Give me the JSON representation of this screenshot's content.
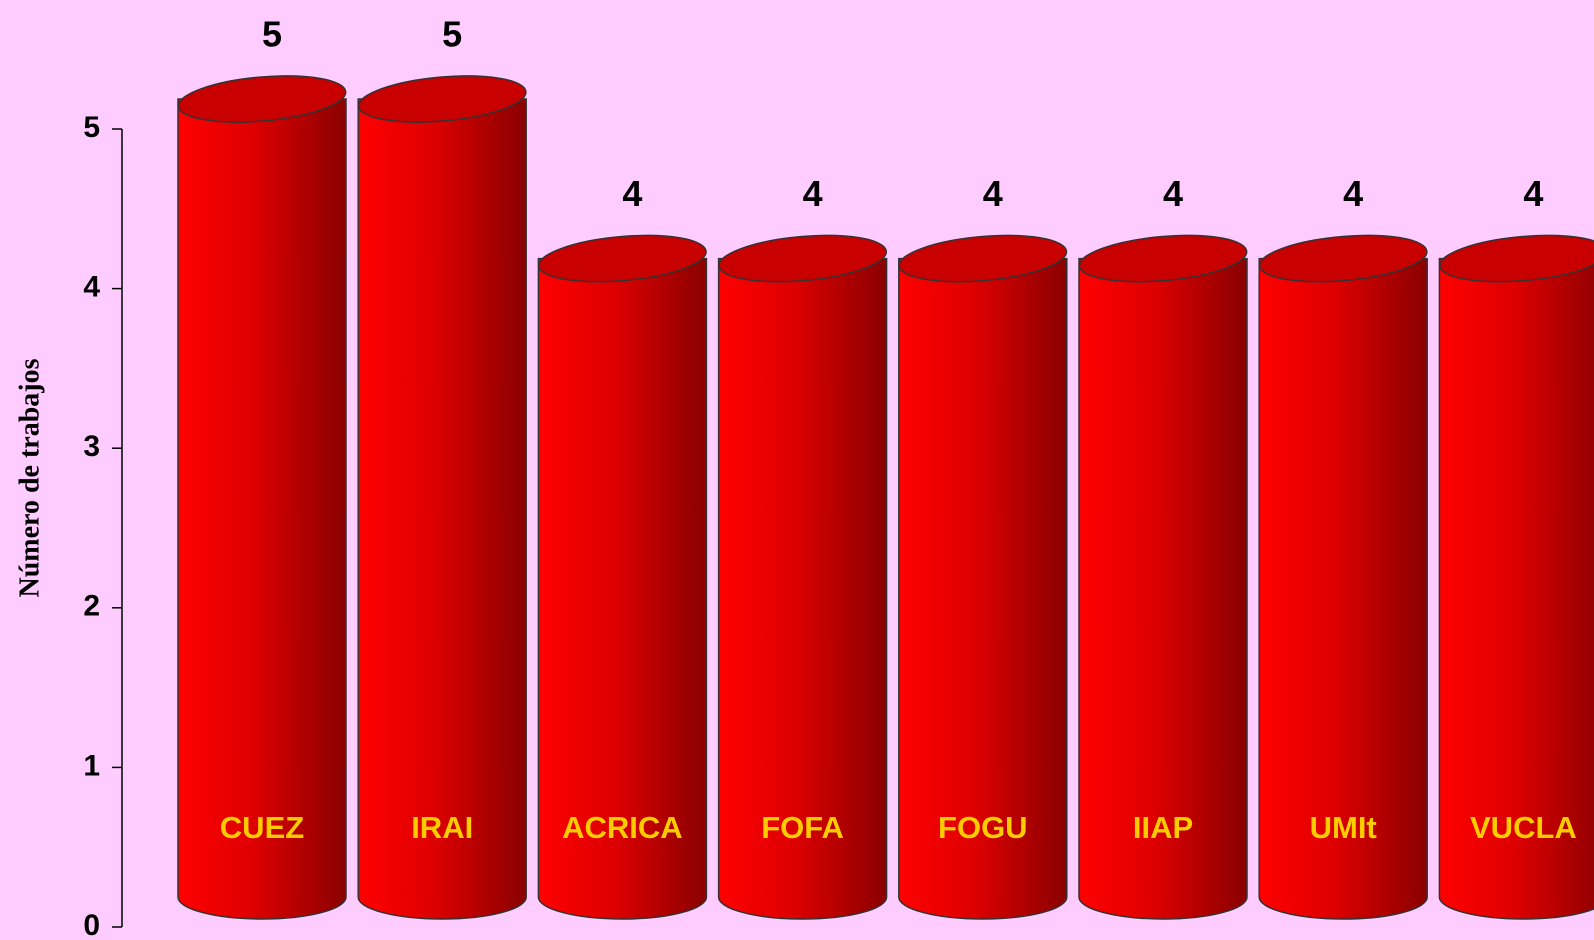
{
  "chart_data": {
    "type": "bar",
    "y_label": "Número de trabajos",
    "categories": [
      "CUEZ",
      "IRAI",
      "ACRICA",
      "FOFA",
      "FOGU",
      "IIAP",
      "UMIt",
      "VUCLA"
    ],
    "values": [
      5,
      5,
      4,
      4,
      4,
      4,
      4,
      4
    ],
    "color": "#ee0000",
    "ylim": [
      0,
      5
    ],
    "yticks": [
      0,
      1,
      2,
      3,
      4,
      5
    ],
    "grid": false
  }
}
